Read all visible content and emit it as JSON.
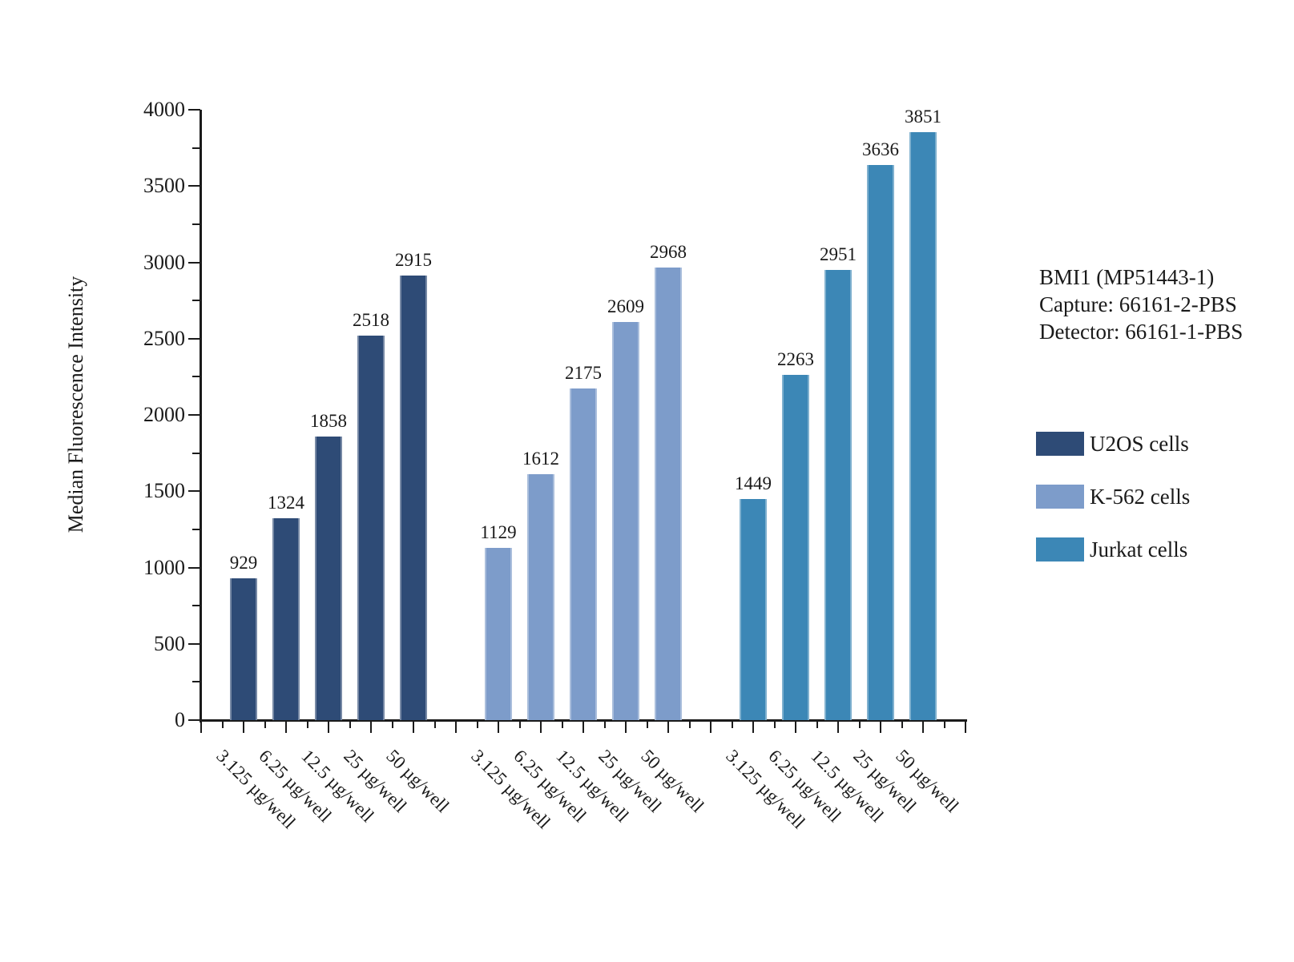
{
  "chart_data": {
    "type": "bar",
    "title": "",
    "xlabel": "",
    "ylabel": "Median Fluorescence Intensity",
    "ylim": [
      0,
      4000
    ],
    "ytick_major": 500,
    "ytick_minor": 250,
    "grid": false,
    "legend_position": "right",
    "categories": [
      "3.125 µg/well",
      "6.25 µg/well",
      "12.5 µg/well",
      "25 µg/well",
      "50 µg/well"
    ],
    "series": [
      {
        "name": "U2OS cells",
        "color": "#2E4B76",
        "values": [
          929,
          1324,
          1858,
          2518,
          2915
        ]
      },
      {
        "name": "K-562 cells",
        "color": "#7D9CCA",
        "values": [
          1129,
          1612,
          2175,
          2609,
          2968
        ]
      },
      {
        "name": "Jurkat cells",
        "color": "#3C87B6",
        "values": [
          1449,
          2263,
          2951,
          3636,
          3851
        ]
      }
    ],
    "annotation_lines": [
      "BMI1 (MP51443-1)",
      "Capture: 66161-2-PBS",
      "Detector: 66161-1-PBS"
    ]
  }
}
